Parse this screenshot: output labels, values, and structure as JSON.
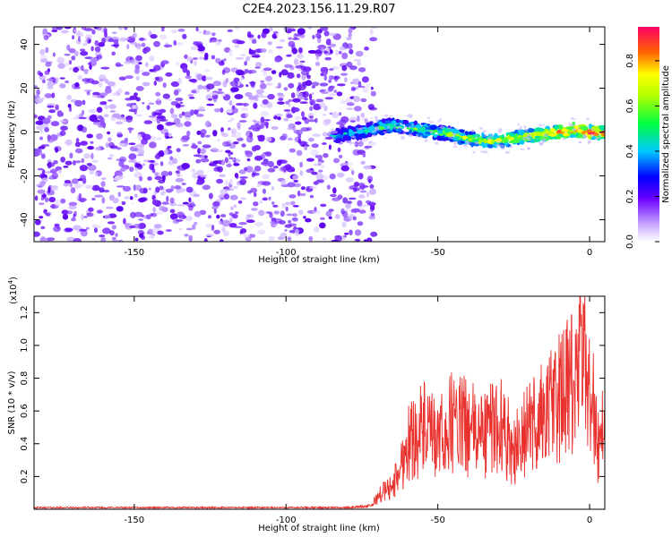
{
  "title": "C2E4.2023.156.11.29.R07",
  "chart_data": [
    {
      "type": "heatmap",
      "xlabel": "Height of straight line (km)",
      "ylabel": "Frequency (Hz)",
      "xlim": [
        -183,
        5
      ],
      "ylim": [
        -50,
        48
      ],
      "xticks": [
        -150,
        -100,
        -50,
        0
      ],
      "yticks": [
        -40,
        -20,
        0,
        20,
        40
      ],
      "noise_region_x": [
        -183,
        -74
      ],
      "signal_ridge": {
        "x": [
          -85,
          -75,
          -70,
          -65,
          -60,
          -55,
          -50,
          -45,
          -40,
          -35,
          -30,
          -25,
          -20,
          -15,
          -10,
          -5,
          0,
          5
        ],
        "frequency": [
          -2,
          0,
          2,
          3,
          2,
          1,
          0,
          -1,
          -3,
          -4,
          -4,
          -3,
          -2,
          -1,
          0,
          1,
          0,
          0
        ]
      },
      "colorbar": {
        "label": "Normalized spectral amplitude",
        "range": [
          0,
          0.95
        ],
        "ticks": [
          0.0,
          0.2,
          0.4,
          0.6,
          0.8
        ]
      }
    },
    {
      "type": "line",
      "xlabel": "Height of straight line (km)",
      "ylabel": "SNR (10 * v/v)",
      "scale_note": "(x10",
      "scale_exp": "4",
      "scale_close": ")",
      "xlim": [
        -183,
        5
      ],
      "ylim": [
        0,
        1.3
      ],
      "xticks": [
        -150,
        -100,
        -50,
        0
      ],
      "yticks": [
        0.2,
        0.4,
        0.6,
        0.8,
        1.0,
        1.2
      ],
      "series": [
        {
          "color": "#e8302c",
          "x": [
            -183,
            -160,
            -140,
            -120,
            -100,
            -80,
            -72,
            -70,
            -68,
            -65,
            -62,
            -60,
            -55,
            -50,
            -45,
            -40,
            -35,
            -30,
            -25,
            -20,
            -15,
            -10,
            -5,
            -3,
            0,
            3,
            5
          ],
          "y": [
            0.01,
            0.01,
            0.01,
            0.01,
            0.01,
            0.01,
            0.02,
            0.08,
            0.12,
            0.15,
            0.3,
            0.45,
            0.55,
            0.45,
            0.6,
            0.55,
            0.5,
            0.6,
            0.4,
            0.55,
            0.65,
            0.75,
            0.85,
            1.0,
            0.9,
            0.4,
            0.65
          ]
        }
      ]
    }
  ]
}
